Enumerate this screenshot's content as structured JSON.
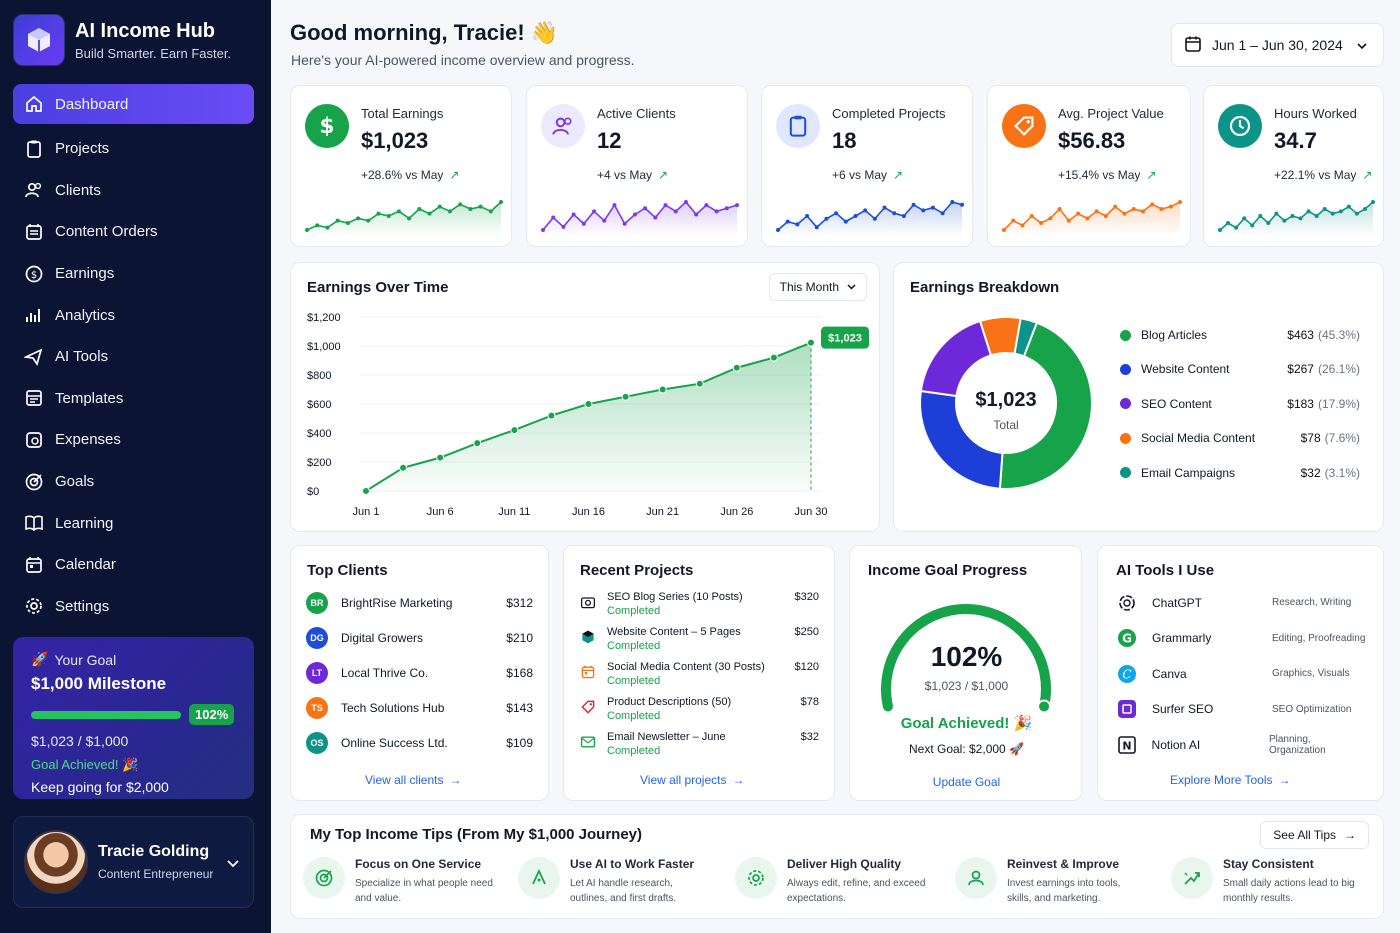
{
  "brand": {
    "title": "AI Income Hub",
    "subtitle": "Build Smarter. Earn Faster."
  },
  "nav": [
    {
      "label": "Dashboard",
      "icon": "home-icon"
    },
    {
      "label": "Projects",
      "icon": "clipboard-icon"
    },
    {
      "label": "Clients",
      "icon": "users-icon"
    },
    {
      "label": "Content Orders",
      "icon": "calendar-list-icon"
    },
    {
      "label": "Earnings",
      "icon": "dollar-circle-icon"
    },
    {
      "label": "Analytics",
      "icon": "bar-chart-icon"
    },
    {
      "label": "AI Tools",
      "icon": "send-icon"
    },
    {
      "label": "Templates",
      "icon": "template-icon"
    },
    {
      "label": "Expenses",
      "icon": "receipt-icon"
    },
    {
      "label": "Goals",
      "icon": "target-icon"
    },
    {
      "label": "Learning",
      "icon": "book-icon"
    },
    {
      "label": "Calendar",
      "icon": "calendar-icon"
    },
    {
      "label": "Settings",
      "icon": "gear-icon"
    }
  ],
  "goal": {
    "heading": "Your Goal",
    "title": "$1,000 Milestone",
    "percent_label": "102%",
    "progress": 1.02,
    "amount": "$1,023 / $1,000",
    "achieved": "Goal Achieved! 🎉",
    "keep": "Keep going for $2,000"
  },
  "profile": {
    "name": "Tracie Golding",
    "role": "Content Entrepreneur"
  },
  "header": {
    "greeting": "Good morning, Tracie! 👋",
    "subtitle": "Here's your AI-powered income overview and progress.",
    "date_range": "Jun 1 – Jun 30, 2024"
  },
  "kpis": [
    {
      "label": "Total Earnings",
      "value": "$1,023",
      "delta": "+28.6% vs May",
      "color": "#16a34a",
      "icon": "dollar-icon",
      "spark": [
        3,
        5,
        4,
        7,
        6,
        8,
        7,
        10,
        9,
        11,
        8,
        12,
        10,
        13,
        11,
        14,
        12,
        13,
        11,
        15
      ]
    },
    {
      "label": "Active Clients",
      "value": "12",
      "delta": "+4 vs May",
      "color": "#7c3aed",
      "icon": "users-icon",
      "spark": [
        4,
        8,
        5,
        9,
        6,
        10,
        7,
        12,
        6,
        9,
        11,
        8,
        12,
        10,
        13,
        9,
        12,
        10,
        11,
        12
      ]
    },
    {
      "label": "Completed Projects",
      "value": "18",
      "delta": "+6 vs May",
      "color": "#1d4ed8",
      "icon": "clipboard-icon",
      "spark": [
        3,
        6,
        5,
        8,
        4,
        7,
        9,
        6,
        8,
        10,
        7,
        11,
        9,
        8,
        12,
        10,
        11,
        9,
        13,
        12
      ]
    },
    {
      "label": "Avg. Project Value",
      "value": "$56.83",
      "delta": "+15.4% vs May",
      "color": "#f97316",
      "icon": "tag-icon",
      "spark": [
        3,
        7,
        5,
        9,
        6,
        8,
        12,
        7,
        10,
        8,
        11,
        9,
        13,
        10,
        12,
        11,
        14,
        12,
        13,
        15
      ]
    },
    {
      "label": "Hours Worked",
      "value": "34.7",
      "delta": "+22.1% vs May",
      "color": "#0d9488",
      "icon": "clock-icon",
      "spark": [
        3,
        6,
        4,
        8,
        5,
        9,
        6,
        10,
        7,
        9,
        8,
        11,
        9,
        12,
        10,
        11,
        13,
        10,
        12,
        15
      ]
    }
  ],
  "earnings_chart": {
    "title": "Earnings Over Time",
    "period": "This Month",
    "callout": "$1,023"
  },
  "chart_data": {
    "type": "area",
    "x": [
      "Jun 1",
      "Jun 3",
      "Jun 6",
      "Jun 8",
      "Jun 11",
      "Jun 13",
      "Jun 16",
      "Jun 18",
      "Jun 21",
      "Jun 23",
      "Jun 26",
      "Jun 28",
      "Jun 30"
    ],
    "x_ticks": [
      "Jun 1",
      "Jun 6",
      "Jun 11",
      "Jun 16",
      "Jun 21",
      "Jun 26",
      "Jun 30"
    ],
    "values": [
      0,
      160,
      230,
      330,
      420,
      520,
      600,
      650,
      700,
      740,
      850,
      920,
      1023
    ],
    "y_ticks": [
      "$1,200",
      "$1,000",
      "$800",
      "$600",
      "$400",
      "$200",
      "$0"
    ],
    "ylim": [
      0,
      1200
    ],
    "color": "#16a34a"
  },
  "breakdown": {
    "title": "Earnings Breakdown",
    "total": "$1,023",
    "total_label": "Total",
    "items": [
      {
        "name": "Blog Articles",
        "value": "$463",
        "pct": "(45.3%)",
        "share": 45.3,
        "color": "#16a34a"
      },
      {
        "name": "Website Content",
        "value": "$267",
        "pct": "(26.1%)",
        "share": 26.1,
        "color": "#1d3fd8"
      },
      {
        "name": "SEO Content",
        "value": "$183",
        "pct": "(17.9%)",
        "share": 17.9,
        "color": "#6d28d9"
      },
      {
        "name": "Social Media Content",
        "value": "$78",
        "pct": "(7.6%)",
        "share": 7.6,
        "color": "#f97316"
      },
      {
        "name": "Email Campaigns",
        "value": "$32",
        "pct": "(3.1%)",
        "share": 3.1,
        "color": "#0d9488"
      }
    ]
  },
  "top_clients": {
    "title": "Top Clients",
    "link": "View all clients",
    "items": [
      {
        "initials": "BR",
        "name": "BrightRise Marketing",
        "amount": "$312",
        "color": "#16a34a"
      },
      {
        "initials": "DG",
        "name": "Digital Growers",
        "amount": "$210",
        "color": "#1d4ed8"
      },
      {
        "initials": "LT",
        "name": "Local Thrive Co.",
        "amount": "$168",
        "color": "#6d28d9"
      },
      {
        "initials": "TS",
        "name": "Tech Solutions Hub",
        "amount": "$143",
        "color": "#f97316"
      },
      {
        "initials": "OS",
        "name": "Online Success Ltd.",
        "amount": "$109",
        "color": "#0d9488"
      }
    ]
  },
  "recent_projects": {
    "title": "Recent Projects",
    "link": "View all projects",
    "items": [
      {
        "name": "SEO Blog Series (10 Posts)",
        "status": "Completed",
        "amount": "$320",
        "icon": "camera-icon",
        "color": "#111827"
      },
      {
        "name": "Website Content – 5 Pages",
        "status": "Completed",
        "amount": "$250",
        "icon": "cube-icon",
        "color": "#0d9488"
      },
      {
        "name": "Social Media Content (30 Posts)",
        "status": "Completed",
        "amount": "$120",
        "icon": "calendar-icon",
        "color": "#f97316"
      },
      {
        "name": "Product Descriptions (50)",
        "status": "Completed",
        "amount": "$78",
        "icon": "tag-icon",
        "color": "#dc2626"
      },
      {
        "name": "Email Newsletter – June",
        "status": "Completed",
        "amount": "$32",
        "icon": "mail-icon",
        "color": "#16a34a"
      }
    ]
  },
  "income_goal": {
    "title": "Income Goal Progress",
    "percent": "102%",
    "progress": 1.02,
    "amount": "$1,023 / $1,000",
    "achieved": "Goal Achieved! 🎉",
    "next": "Next Goal: $2,000 🚀",
    "button": "Update Goal"
  },
  "ai_tools": {
    "title": "AI Tools I Use",
    "link": "Explore More Tools",
    "items": [
      {
        "name": "ChatGPT",
        "desc": "Research, Writing",
        "icon": "chatgpt-icon",
        "color": "#111827"
      },
      {
        "name": "Grammarly",
        "desc": "Editing, Proofreading",
        "icon": "grammarly-icon",
        "color": "#16a34a"
      },
      {
        "name": "Canva",
        "desc": "Graphics, Visuals",
        "icon": "canva-icon",
        "color": "#0ea5e9"
      },
      {
        "name": "Surfer SEO",
        "desc": "SEO Optimization",
        "icon": "surfer-icon",
        "color": "#6d28d9"
      },
      {
        "name": "Notion AI",
        "desc": "Planning, Organization",
        "icon": "notion-icon",
        "color": "#111827"
      }
    ]
  },
  "tips": {
    "title": "My Top Income Tips (From My $1,000 Journey)",
    "button": "See All Tips",
    "items": [
      {
        "title": "Focus on One Service",
        "desc": "Specialize in what people need and value.",
        "icon": "target-icon"
      },
      {
        "title": "Use AI to Work Faster",
        "desc": "Let AI handle research, outlines, and first drafts.",
        "icon": "ai-icon"
      },
      {
        "title": "Deliver High Quality",
        "desc": "Always edit, refine, and exceed expectations.",
        "icon": "gear-icon"
      },
      {
        "title": "Reinvest & Improve",
        "desc": "Invest earnings into tools, skills, and marketing.",
        "icon": "user-icon"
      },
      {
        "title": "Stay Consistent",
        "desc": "Small daily actions lead to big monthly results.",
        "icon": "trend-icon"
      }
    ]
  }
}
